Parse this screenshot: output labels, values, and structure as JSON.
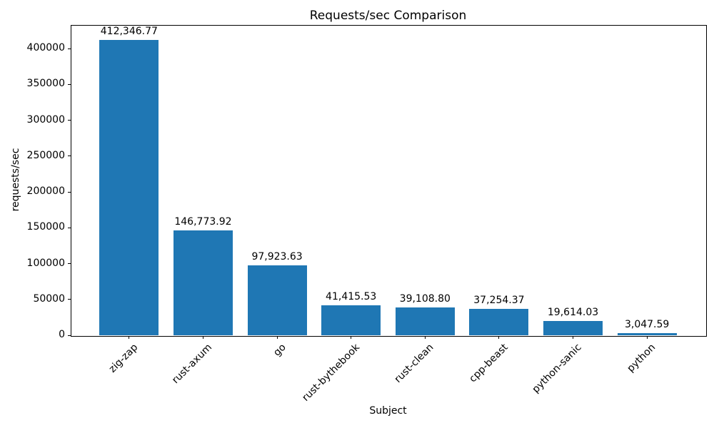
{
  "chart_data": {
    "type": "bar",
    "title": "Requests/sec Comparison",
    "xlabel": "Subject",
    "ylabel": "requests/sec",
    "categories": [
      "zig-zap",
      "rust-axum",
      "go",
      "rust-bythebook",
      "rust-clean",
      "cpp-beast",
      "python-sanic",
      "python"
    ],
    "values": [
      412346.77,
      146773.92,
      97923.63,
      41415.53,
      39108.8,
      37254.37,
      19614.03,
      3047.59
    ],
    "value_labels": [
      "412,346.77",
      "146,773.92",
      "97,923.63",
      "41,415.53",
      "39,108.80",
      "37,254.37",
      "19,614.03",
      "3,047.59"
    ],
    "y_ticks": [
      0,
      50000,
      100000,
      150000,
      200000,
      250000,
      300000,
      350000,
      400000
    ],
    "ylim": [
      0,
      432964
    ],
    "bar_color": "#1f77b4",
    "grid": false,
    "legend": "none",
    "x_tick_rotation": 45
  }
}
